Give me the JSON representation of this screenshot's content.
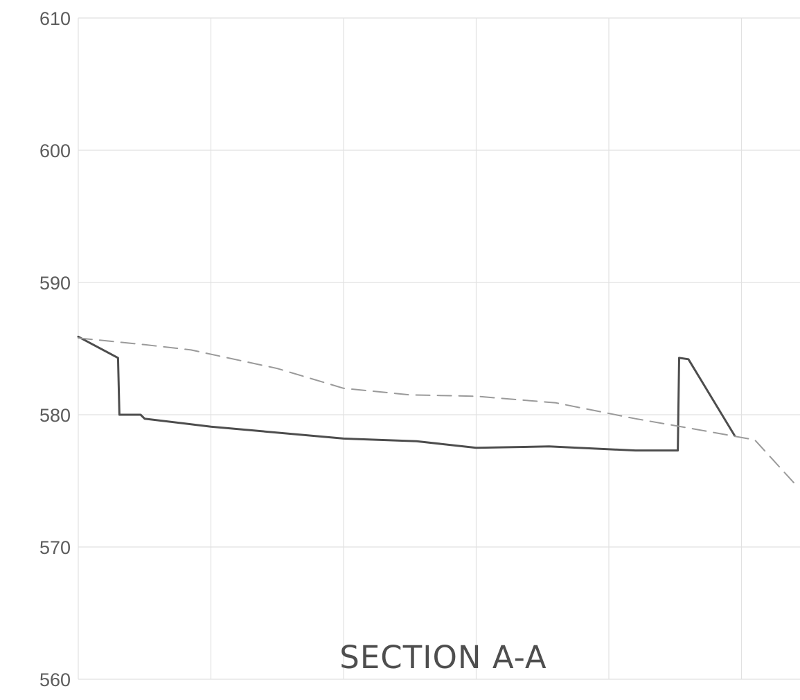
{
  "chart_data": {
    "type": "line",
    "title": "SECTION A-A",
    "ylim": [
      560,
      610
    ],
    "y_ticks": [
      "610",
      "600",
      "590",
      "580",
      "570",
      "560"
    ],
    "y_tick_values": [
      610,
      600,
      590,
      580,
      570,
      560
    ],
    "xlim": [
      0,
      6
    ],
    "x_grid": [
      0,
      1,
      2,
      3,
      4,
      5,
      6
    ],
    "grid": true,
    "colors": {
      "proposed": "#4d4d4d",
      "existing": "#9a9a9a",
      "grid": "#e1e1e1"
    },
    "series": [
      {
        "style": "solid",
        "points": [
          [
            0.0,
            585.9
          ],
          [
            0.3,
            584.3
          ],
          [
            0.31,
            580.0
          ],
          [
            0.47,
            580.0
          ],
          [
            0.5,
            579.7
          ],
          [
            1.0,
            579.1
          ],
          [
            2.0,
            578.2
          ],
          [
            2.55,
            578.0
          ],
          [
            3.0,
            577.5
          ],
          [
            3.55,
            577.6
          ],
          [
            4.2,
            577.3
          ],
          [
            4.52,
            577.3
          ],
          [
            4.53,
            584.3
          ],
          [
            4.6,
            584.2
          ],
          [
            4.95,
            578.4
          ]
        ]
      },
      {
        "style": "dashed",
        "points": [
          [
            0.0,
            585.8
          ],
          [
            0.5,
            585.3
          ],
          [
            0.85,
            584.9
          ],
          [
            1.5,
            583.5
          ],
          [
            2.0,
            582.0
          ],
          [
            2.5,
            581.5
          ],
          [
            3.0,
            581.4
          ],
          [
            3.6,
            580.9
          ],
          [
            4.2,
            579.7
          ],
          [
            4.6,
            579.0
          ],
          [
            5.1,
            578.1
          ],
          [
            5.4,
            574.8
          ]
        ]
      }
    ]
  }
}
